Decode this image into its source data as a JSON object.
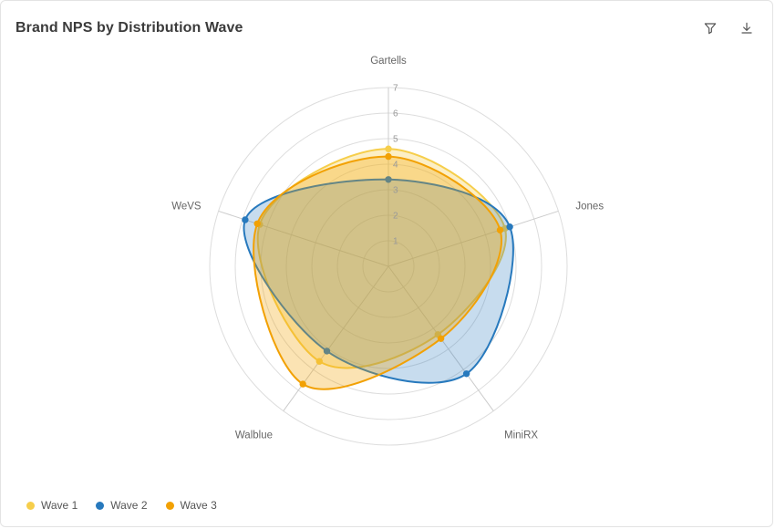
{
  "header": {
    "title": "Brand NPS by Distribution Wave"
  },
  "toolbar": {
    "filter_icon": "filter-funnel-icon",
    "download_icon": "download-icon"
  },
  "chart_data": {
    "type": "radar",
    "title": "Brand NPS by Distribution Wave",
    "categories": [
      "Gartells",
      "Jones",
      "MiniRX",
      "Walblue",
      "WeVS"
    ],
    "ticks": [
      1,
      2,
      3,
      4,
      5,
      6,
      7
    ],
    "rmin": 0,
    "rmax": 7,
    "grid": "circular",
    "legend_position": "bottom-left",
    "grid_color": "#dddddd",
    "spoke_color": "#cccccc",
    "axis_label_color": "#666666",
    "tick_label_color": "#999999",
    "series": [
      {
        "name": "Wave 1",
        "color": "#f6ce4b",
        "fill_opacity": 0.32,
        "values": [
          4.6,
          4.8,
          3.3,
          4.6,
          5.3
        ]
      },
      {
        "name": "Wave 2",
        "color": "#2779bd",
        "fill_opacity": 0.26,
        "values": [
          3.4,
          5.0,
          5.2,
          4.1,
          5.9
        ]
      },
      {
        "name": "Wave 3",
        "color": "#f2a104",
        "fill_opacity": 0.3,
        "values": [
          4.3,
          4.6,
          3.5,
          5.7,
          5.4
        ]
      }
    ]
  }
}
